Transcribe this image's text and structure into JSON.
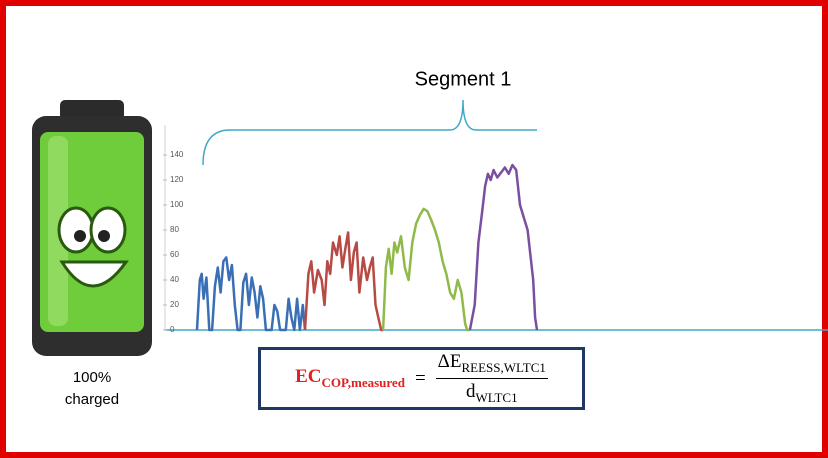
{
  "segment_label": "Segment 1",
  "battery_label_line1": "100%",
  "battery_label_line2": "charged",
  "formula": {
    "lhs_main": "EC",
    "lhs_sub": "COP,measured",
    "equals": "=",
    "numerator_main": "ΔE",
    "numerator_sub": "REESS,WLTC1",
    "denominator_main": "d",
    "denominator_sub": "WLTC1"
  },
  "chart_data": {
    "type": "line",
    "xlim": [
      0,
      1800
    ],
    "ylim": [
      0,
      140
    ],
    "yticks": [
      0,
      20,
      40,
      60,
      80,
      100,
      120,
      140
    ],
    "series": [
      {
        "color": "#3a6fb5",
        "x": [
          0,
          15,
          25,
          35,
          50,
          65,
          80,
          95,
          110,
          125,
          140,
          155,
          170,
          185,
          200,
          215,
          230,
          245,
          260,
          275,
          290,
          305,
          320,
          335,
          350,
          365,
          380,
          395,
          410,
          425,
          440,
          455,
          470,
          485,
          500,
          515,
          530,
          545,
          560,
          572
        ],
        "values": [
          0,
          40,
          45,
          25,
          42,
          0,
          0,
          35,
          50,
          30,
          55,
          58,
          40,
          52,
          20,
          0,
          0,
          38,
          45,
          20,
          42,
          30,
          10,
          35,
          25,
          0,
          0,
          0,
          20,
          15,
          0,
          0,
          0,
          25,
          10,
          0,
          25,
          0,
          20,
          0
        ]
      },
      {
        "color": "#b84a45",
        "x": [
          572,
          590,
          605,
          620,
          640,
          660,
          675,
          690,
          705,
          720,
          740,
          755,
          770,
          785,
          800,
          815,
          830,
          845,
          860,
          880,
          900,
          915,
          930,
          945,
          960,
          975,
          985
        ],
        "values": [
          0,
          45,
          55,
          30,
          48,
          40,
          20,
          55,
          45,
          70,
          60,
          75,
          50,
          65,
          78,
          40,
          62,
          70,
          30,
          58,
          40,
          50,
          58,
          20,
          10,
          0,
          0
        ]
      },
      {
        "color": "#8fba4a",
        "x": [
          985,
          1000,
          1015,
          1030,
          1045,
          1060,
          1080,
          1100,
          1120,
          1140,
          1160,
          1180,
          1200,
          1220,
          1240,
          1260,
          1280,
          1300,
          1320,
          1340,
          1360,
          1380,
          1400,
          1420,
          1430,
          1445
        ],
        "values": [
          0,
          50,
          65,
          45,
          70,
          62,
          75,
          50,
          40,
          70,
          85,
          92,
          97,
          95,
          88,
          80,
          70,
          55,
          45,
          30,
          25,
          40,
          30,
          5,
          0,
          0
        ]
      },
      {
        "color": "#7b4fa0",
        "x": [
          1445,
          1470,
          1490,
          1510,
          1525,
          1540,
          1555,
          1570,
          1590,
          1610,
          1630,
          1650,
          1670,
          1690,
          1710,
          1730,
          1750,
          1765,
          1780,
          1790,
          1800
        ],
        "values": [
          0,
          20,
          70,
          95,
          115,
          125,
          120,
          128,
          122,
          126,
          130,
          125,
          132,
          128,
          100,
          90,
          80,
          60,
          40,
          10,
          0
        ]
      }
    ]
  }
}
